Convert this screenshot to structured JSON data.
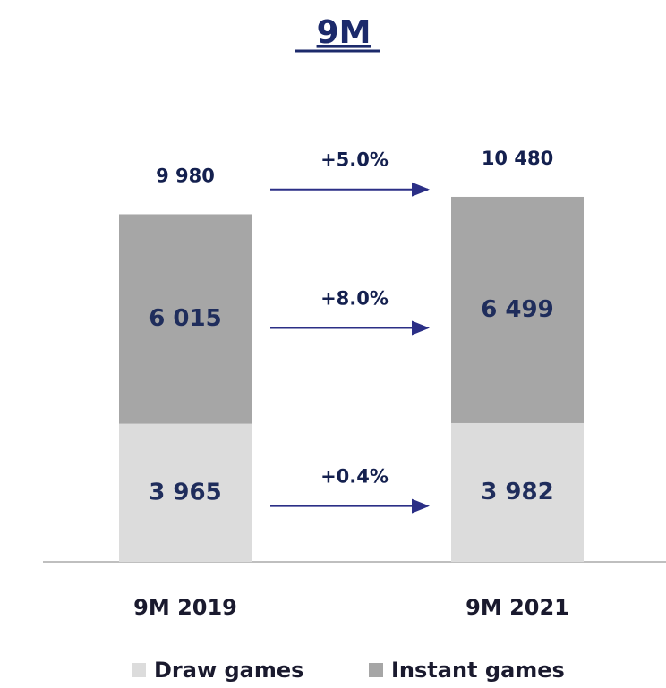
{
  "chart_data": {
    "type": "stacked_bar",
    "title": "9M",
    "categories": [
      "9M 2019",
      "9M 2021"
    ],
    "series": [
      {
        "name": "Draw games",
        "color": "#dcdcdc",
        "values": [
          3965,
          3982
        ],
        "value_labels": [
          "3 965",
          "3 982"
        ]
      },
      {
        "name": "Instant games",
        "color": "#a6a6a6",
        "values": [
          6015,
          6499
        ],
        "value_labels": [
          "6 015",
          "6 499"
        ]
      }
    ],
    "totals": {
      "values": [
        9980,
        10480
      ],
      "value_labels": [
        "9 980",
        "10 480"
      ]
    },
    "changes": {
      "series": [
        {
          "values": [
            0.4
          ],
          "value_labels": [
            "+0.4%"
          ]
        },
        {
          "values": [
            8.0
          ],
          "value_labels": [
            "+8.0%"
          ]
        }
      ],
      "total": {
        "values": [
          5.0
        ],
        "value_labels": [
          "+5.0%"
        ]
      }
    }
  }
}
